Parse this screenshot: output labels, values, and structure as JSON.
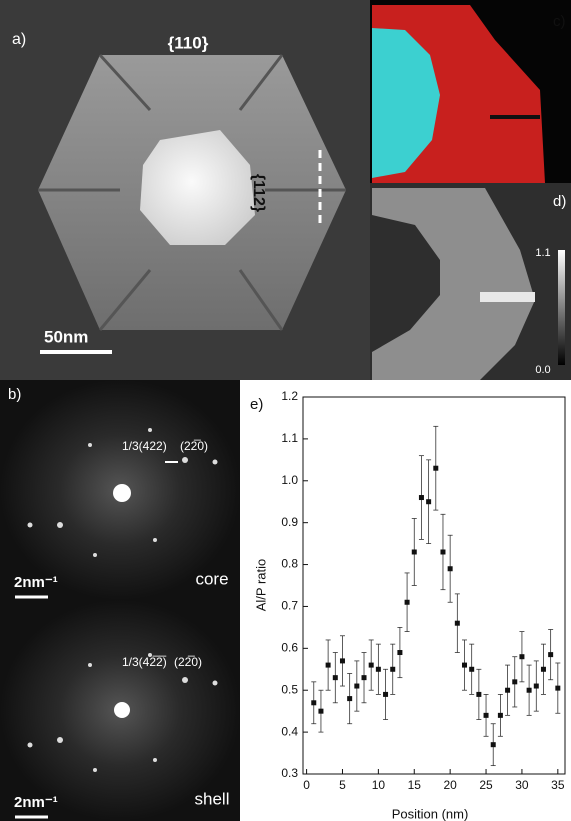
{
  "panel_a": {
    "label": "a)",
    "facet_top": "{110}",
    "facet_side": "{112}",
    "scale_bar": "50nm"
  },
  "panel_c": {
    "label": "c)"
  },
  "panel_d": {
    "label": "d)",
    "colorbar_max": "1.1",
    "colorbar_min": "0.0"
  },
  "panel_b": {
    "label": "b)",
    "core": {
      "spot_a": "1/3(422)",
      "spot_b": "(22̅0)",
      "scale_bar": "2nm⁻¹",
      "name": "core"
    },
    "shell": {
      "spot_a": "1/3(42̅2̅)",
      "spot_b": "(22̅0)",
      "scale_bar": "2nm⁻¹",
      "name": "shell"
    }
  },
  "chart_data": {
    "type": "scatter",
    "panel_label": "e)",
    "x_label": "Position (nm)",
    "y_label": "Al/P ratio",
    "x": [
      1,
      2,
      3,
      4,
      5,
      6,
      7,
      8,
      9,
      10,
      11,
      12,
      13,
      14,
      15,
      16,
      17,
      18,
      19,
      20,
      21,
      22,
      23,
      24,
      25,
      26,
      27,
      28,
      29,
      30,
      31,
      32,
      33,
      34,
      35
    ],
    "values": [
      0.47,
      0.45,
      0.56,
      0.53,
      0.57,
      0.48,
      0.51,
      0.53,
      0.56,
      0.55,
      0.49,
      0.55,
      0.59,
      0.71,
      0.83,
      0.96,
      0.95,
      1.03,
      0.83,
      0.79,
      0.66,
      0.56,
      0.55,
      0.49,
      0.44,
      0.37,
      0.44,
      0.5,
      0.52,
      0.58,
      0.5,
      0.51,
      0.55,
      0.585,
      0.505
    ],
    "errors": [
      0.05,
      0.05,
      0.06,
      0.06,
      0.06,
      0.06,
      0.06,
      0.06,
      0.06,
      0.06,
      0.06,
      0.06,
      0.06,
      0.07,
      0.08,
      0.1,
      0.1,
      0.1,
      0.09,
      0.08,
      0.07,
      0.06,
      0.06,
      0.06,
      0.05,
      0.05,
      0.05,
      0.06,
      0.06,
      0.06,
      0.06,
      0.06,
      0.06,
      0.06,
      0.06
    ],
    "color": "#111111",
    "xlim": [
      -0.5,
      36
    ],
    "ylim": [
      0.3,
      1.2
    ],
    "xticks": [
      0,
      5,
      10,
      15,
      20,
      25,
      30,
      35
    ],
    "yticks": [
      0.3,
      0.4,
      0.5,
      0.6,
      0.7,
      0.8,
      0.9,
      {
        "value": 1,
        "label": "1.0"
      },
      1.1,
      1.2
    ]
  }
}
